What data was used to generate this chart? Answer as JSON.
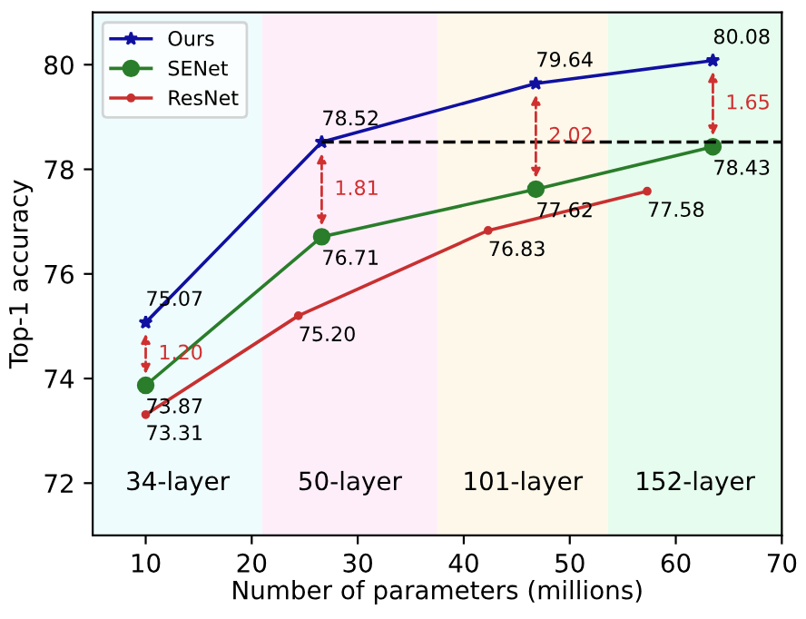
{
  "chart_data": {
    "type": "line",
    "xlabel": "Number of parameters (millions)",
    "ylabel": "Top-1 accuracy",
    "xlim": [
      5,
      70
    ],
    "xticks": [
      10,
      20,
      30,
      40,
      50,
      60,
      70
    ],
    "ylim": [
      71,
      81
    ],
    "yticks": [
      72,
      74,
      76,
      78,
      80
    ],
    "grid": false,
    "legend": "top left",
    "series": [
      {
        "name": "Ours",
        "color": "#1010a0",
        "marker": "star",
        "x": [
          10,
          26.6,
          46.8,
          63.5
        ],
        "values": [
          75.07,
          78.52,
          79.64,
          80.08
        ],
        "value_labels": [
          "75.07",
          "78.52",
          "79.64",
          "80.08"
        ]
      },
      {
        "name": "SENet",
        "color": "#2a7d2a",
        "marker": "circle",
        "x": [
          10,
          26.6,
          46.8,
          63.5
        ],
        "values": [
          73.87,
          76.71,
          77.62,
          78.43
        ],
        "value_labels": [
          "73.87",
          "76.71",
          "77.62",
          "78.43"
        ]
      },
      {
        "name": "ResNet",
        "color": "#c83030",
        "marker": "dot",
        "x": [
          10,
          24.4,
          42.3,
          57.3
        ],
        "values": [
          73.31,
          75.2,
          76.83,
          77.58
        ],
        "value_labels": [
          "73.31",
          "75.20",
          "76.83",
          "77.58"
        ]
      },
      {
        "type": "line",
        "color": "#000000",
        "line_style": "dashed",
        "marker": "none",
        "x": [
          26.6,
          70
        ],
        "values": [
          78.52,
          78.52
        ]
      }
    ],
    "bands": [
      {
        "axis": "x",
        "from": 5,
        "to": 21,
        "label": "34-layer",
        "color": "#eefcfd"
      },
      {
        "axis": "x",
        "from": 21,
        "to": 37.5,
        "label": "50-layer",
        "color": "#fdeefa"
      },
      {
        "axis": "x",
        "from": 37.5,
        "to": 53.6,
        "label": "101-layer",
        "color": "#fdf8ea"
      },
      {
        "axis": "x",
        "from": 53.6,
        "to": 70,
        "label": "152-layer",
        "color": "#e6fcee"
      }
    ],
    "annotations": [
      "1.20",
      "1.81",
      "2.02",
      "1.65"
    ]
  }
}
